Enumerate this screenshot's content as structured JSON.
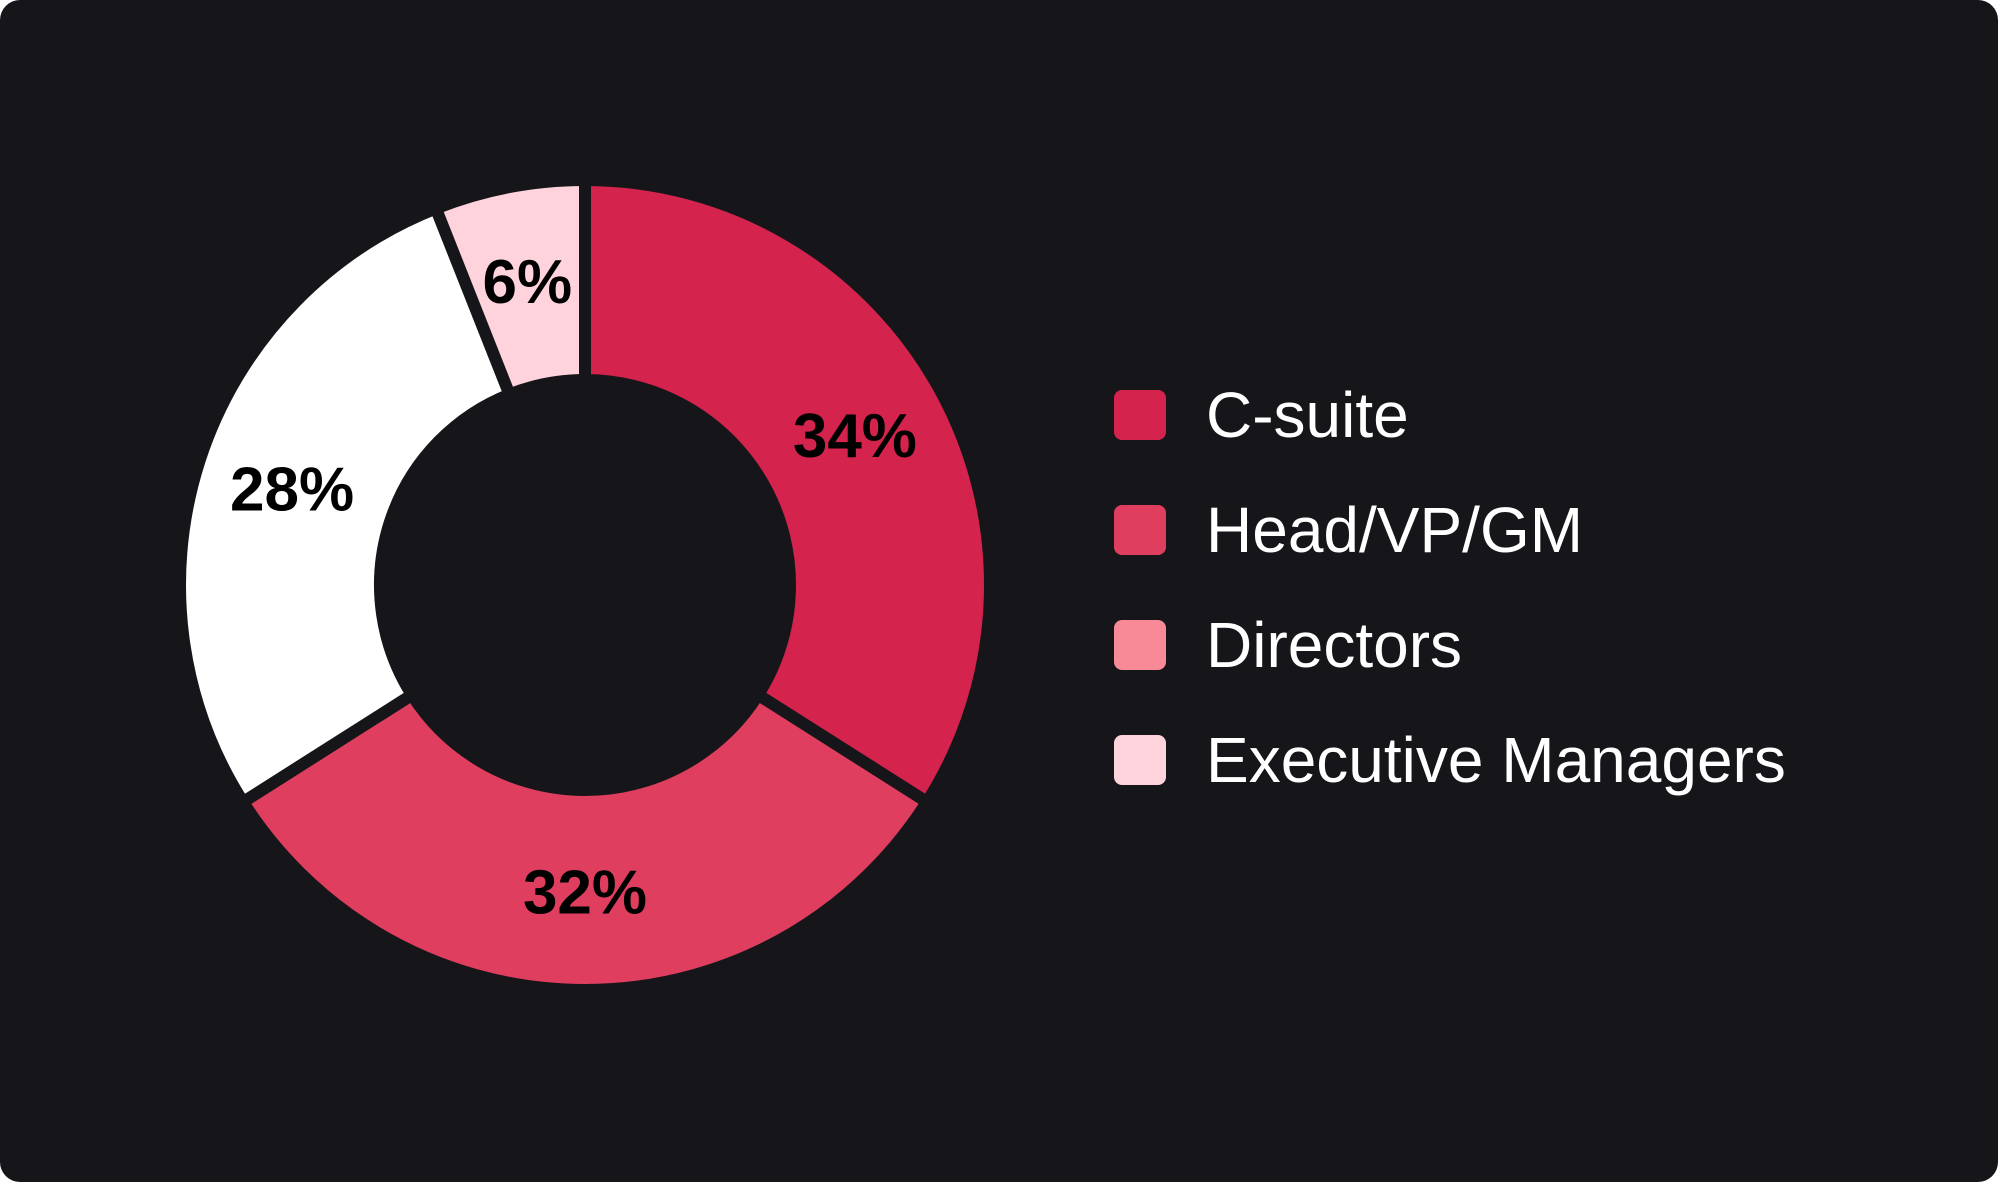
{
  "chart_data": {
    "type": "pie",
    "variant": "donut",
    "categories": [
      "C-suite",
      "Head/VP/GM",
      "Directors",
      "Executive Managers"
    ],
    "values": [
      34,
      32,
      28,
      6
    ],
    "value_labels": [
      "34%",
      "32%",
      "28%",
      "6%"
    ],
    "slice_colors": [
      "#d4234d",
      "#df3e5e",
      "#ffffff",
      "#ffd3dc"
    ],
    "legend_colors": [
      "#d4234d",
      "#df3e5e",
      "#f78a96",
      "#ffd3dc"
    ],
    "legend": [
      {
        "label": "C-suite",
        "color": "#d4234d"
      },
      {
        "label": "Head/VP/GM",
        "color": "#df3e5e"
      },
      {
        "label": "Directors",
        "color": "#f78a96"
      },
      {
        "label": "Executive Managers",
        "color": "#ffd3dc"
      }
    ],
    "legend_position": "right",
    "start_angle": "top",
    "direction": "clockwise",
    "unit": "%"
  },
  "colors": {
    "background": "#16161a",
    "label_text": "#000000",
    "legend_text": "#ffffff",
    "slice_separator": "#16161a"
  }
}
